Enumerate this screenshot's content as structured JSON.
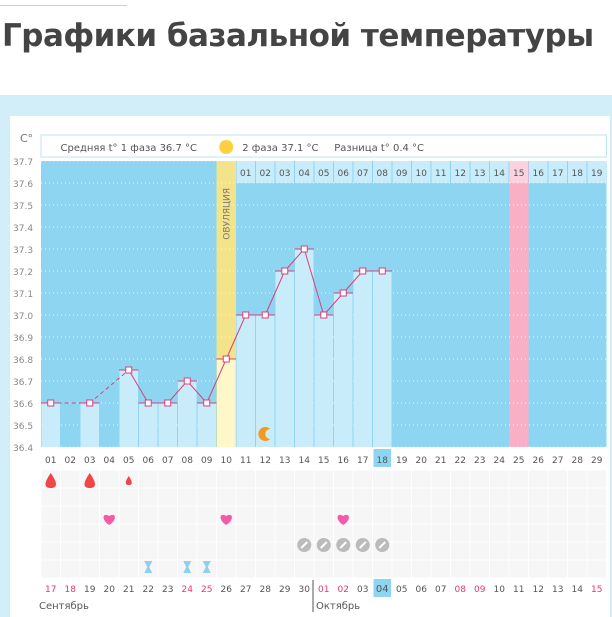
{
  "page": {
    "title": "Графики базальной температуры"
  },
  "chart_data": {
    "type": "line",
    "ylabel": "C°",
    "ylim": [
      36.4,
      37.7
    ],
    "yticks": [
      "37.7",
      "37.6",
      "37.5",
      "37.4",
      "37.3",
      "37.2",
      "37.1",
      "37.0",
      "36.9",
      "36.8",
      "36.7",
      "36.6",
      "36.5",
      "36.4"
    ],
    "header": {
      "phase1": "Средняя t° 1 фаза 36.7 °C",
      "phase2": "2 фаза 37.1 °C",
      "diff": "Разница t° 0.4 °C"
    },
    "ovulation_label": "ОВУЛЯЦИЯ",
    "ovulation_day": 10,
    "cycle_days": [
      "01",
      "02",
      "03",
      "04",
      "05",
      "06",
      "07",
      "08",
      "09",
      "10",
      "11",
      "12",
      "13",
      "14",
      "15",
      "16",
      "17",
      "18",
      "19",
      "20",
      "21",
      "22",
      "23",
      "24",
      "25",
      "26",
      "27",
      "28",
      "29"
    ],
    "current_cycle_day": 18,
    "temperatures": [
      36.6,
      null,
      36.6,
      null,
      36.75,
      36.6,
      36.6,
      36.7,
      36.6,
      36.8,
      37.0,
      37.0,
      37.2,
      37.3,
      37.0,
      37.1,
      37.2,
      37.2
    ],
    "phase2_days": [
      "01",
      "02",
      "03",
      "04",
      "05",
      "06",
      "07",
      "08",
      "09",
      "10",
      "11",
      "12",
      "13",
      "14",
      "15",
      "16",
      "17",
      "18",
      "19"
    ],
    "expected_period_phase2_day": "15",
    "dates": [
      "17",
      "18",
      "19",
      "20",
      "21",
      "22",
      "23",
      "24",
      "25",
      "26",
      "27",
      "28",
      "29",
      "30",
      "01",
      "02",
      "03",
      "04",
      "05",
      "06",
      "07",
      "08",
      "09",
      "10",
      "11",
      "12",
      "13",
      "14",
      "15"
    ],
    "weekend_dates_index": [
      0,
      1,
      7,
      8,
      14,
      15,
      21,
      22,
      28
    ],
    "today_date_index": 17,
    "months": [
      {
        "label": "Сентябрь",
        "start_index": 0
      },
      {
        "label": "Октябрь",
        "start_index": 14
      }
    ],
    "markers": {
      "bleeding-heavy": [
        1,
        3
      ],
      "bleeding-light": [
        5
      ],
      "intercourse-heart": [
        4,
        10,
        16
      ],
      "medication-pill": [
        14,
        15,
        16,
        17,
        18
      ],
      "test-hourglass": [
        6,
        8,
        9
      ],
      "moon-icon": [
        12
      ]
    },
    "colors": {
      "plot_bg": "#8ed5f1",
      "bar": "#c8ecfa",
      "line": "#d9417b",
      "ovulation": "#f3e38b",
      "period": "#f9b0c7",
      "highlight": "#8ed5f1",
      "weekend": "#e8366f"
    }
  }
}
